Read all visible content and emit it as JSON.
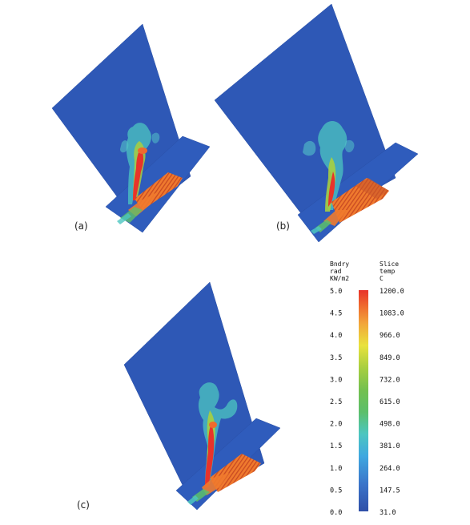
{
  "panels": [
    {
      "label": "(a)"
    },
    {
      "label": "(b)"
    },
    {
      "label": "(c)"
    }
  ],
  "legend": {
    "left_header": [
      "Bndry",
      "rad",
      "KW/m2"
    ],
    "right_header": [
      "Slice",
      "temp",
      "C"
    ],
    "left_ticks": [
      "5.0",
      "4.5",
      "4.0",
      "3.5",
      "3.0",
      "2.5",
      "2.0",
      "1.5",
      "1.0",
      "0.5",
      "0.0"
    ],
    "right_ticks": [
      "1200.0",
      "1083.0",
      "966.0",
      "849.0",
      "732.0",
      "615.0",
      "498.0",
      "381.0",
      "264.0",
      "147.5",
      "31.0"
    ],
    "colors": [
      "#2f4fa8",
      "#3a73c9",
      "#3fa8e0",
      "#4cc6c0",
      "#5cbf6a",
      "#74c04f",
      "#a8cf3f",
      "#e9e23c",
      "#f2a53a",
      "#ef6a2e",
      "#e8332a"
    ]
  },
  "colors": {
    "plane": "#2e58b6",
    "plane_edge": "#2a50a6",
    "hot": "#e8332a",
    "warm": "#ef7a2e",
    "cool": "#53c3c8",
    "mid": "#7fc84c"
  }
}
